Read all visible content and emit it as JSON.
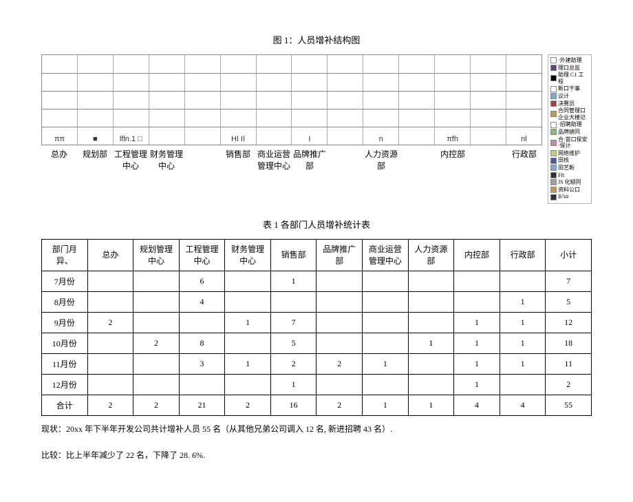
{
  "chart": {
    "title": "图 1：人员增补结构图",
    "grid_rows": 5,
    "categories": [
      "总办",
      "规划部",
      "工程管理中心",
      "财务管理中心",
      "",
      "销售部",
      "商业运营管理中心",
      "品牌推广部",
      "",
      "人力资源部",
      "",
      "内控部",
      "",
      "行政部"
    ],
    "bar_placeholders": [
      "ππ",
      "■",
      "lfln.1 □",
      "",
      "",
      "HI II",
      "",
      "I",
      "",
      "n",
      "",
      "πfh",
      "",
      "nl"
    ],
    "legend": [
      {
        "label": "·外建助理",
        "color": "#ffffff"
      },
      {
        "label": "理口总监",
        "color": "#6b3e91"
      },
      {
        "label": "助理 C1 工程",
        "color": "#000000"
      },
      {
        "label": "断口干事",
        "color": "#ffffff"
      },
      {
        "label": "议计",
        "color": "#7aa7d6"
      },
      {
        "label": "决赛员",
        "color": "#b83a3a"
      },
      {
        "label": "合同管理口企业大楼记",
        "color": "#c29a4a"
      },
      {
        "label": "·招聘助理",
        "color": "#ffffff"
      },
      {
        "label": "品牌绩同",
        "color": "#8bb77a"
      },
      {
        "label": "合·苗口保安·保计",
        "color": "#c28aa7"
      },
      {
        "label": "网络维护",
        "color": "#c0d070"
      },
      {
        "label": "田核",
        "color": "#4a5aa0"
      },
      {
        "label": "田艺断",
        "color": "#7aa7d6"
      },
      {
        "label": "Fft",
        "color": "#333333"
      },
      {
        "label": "JS 化顺同",
        "color": "#a0a0a0"
      },
      {
        "label": "资料公口",
        "color": "#c29a4a"
      },
      {
        "label": "B⅞#",
        "color": "#333333"
      }
    ]
  },
  "table": {
    "title": "表 1 各部门人员增补统计表",
    "headers": [
      "部门月异、",
      "总办",
      "规划管理中心",
      "工程管理中心",
      "财务管理中心",
      "销售部",
      "品牌推广部",
      "商业运营管理中心",
      "人力资源部",
      "内控部",
      "行政部",
      "小计"
    ],
    "rows": [
      {
        "label": "7月份",
        "cells": [
          "",
          "",
          "6",
          "",
          "1",
          "",
          "",
          "",
          "",
          "",
          "7"
        ]
      },
      {
        "label": "8月份",
        "cells": [
          "",
          "",
          "4",
          "",
          "",
          "",
          "",
          "",
          "",
          "1",
          "5"
        ]
      },
      {
        "label": "9月份",
        "cells": [
          "2",
          "",
          "",
          "1",
          "7",
          "",
          "",
          "",
          "1",
          "1",
          "12"
        ]
      },
      {
        "label": "10月份",
        "cells": [
          "",
          "2",
          "8",
          "",
          "5",
          "",
          "",
          "1",
          "1",
          "1",
          "18"
        ]
      },
      {
        "label": "11月份",
        "cells": [
          "",
          "",
          "3",
          "1",
          "2",
          "2",
          "1",
          "",
          "1",
          "1",
          "11"
        ]
      },
      {
        "label": "12月份",
        "cells": [
          "",
          "",
          "",
          "",
          "1",
          "",
          "",
          "",
          "1",
          "",
          "2"
        ]
      },
      {
        "label": "合计",
        "cells": [
          "2",
          "2",
          "21",
          "2",
          "16",
          "2",
          "1",
          "1",
          "4",
          "4",
          "55"
        ]
      }
    ]
  },
  "notes": {
    "line1": "现状：20xx 年下半年开发公司共计增补人员 55 名（从其他兄弟公司调入 12 名, 新进招聘 43 名）.",
    "line2": "比较：比上半年减少了 22 名，下降了 28. 6%."
  }
}
